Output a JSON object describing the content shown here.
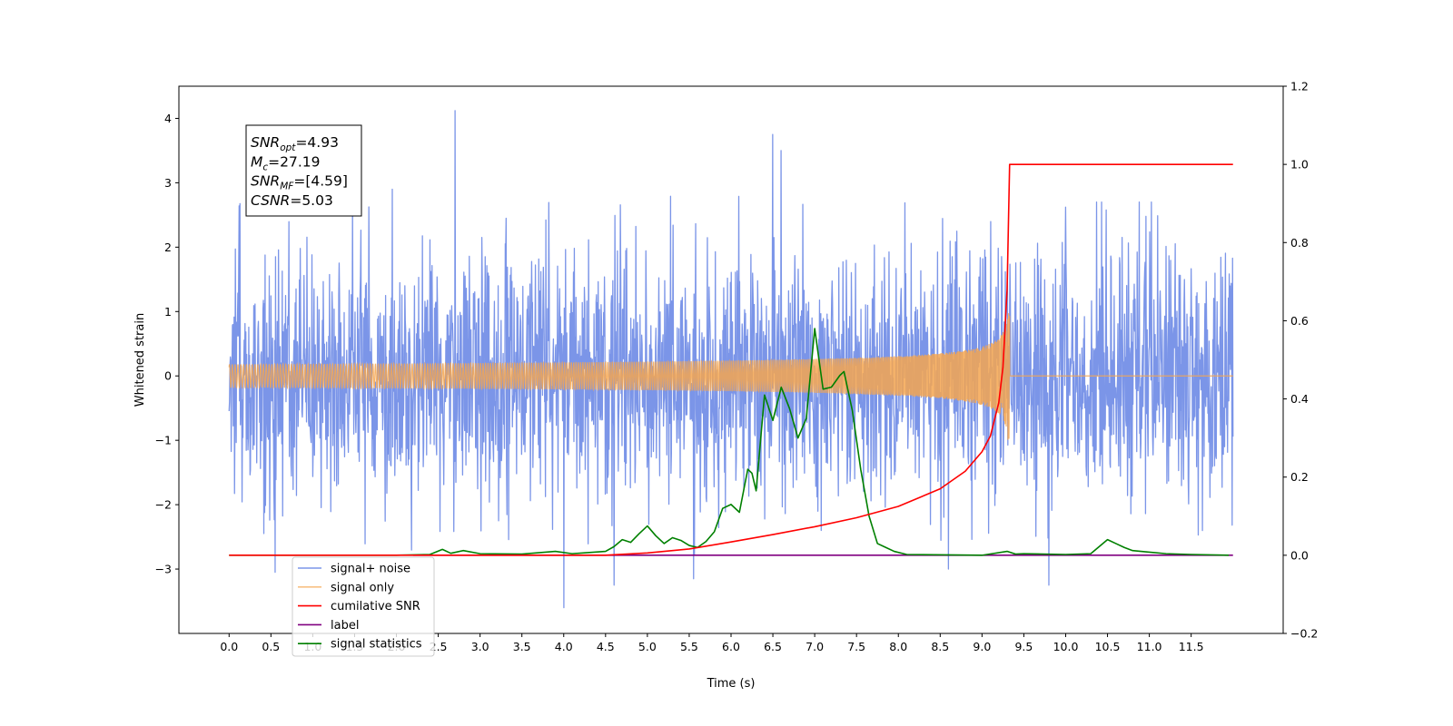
{
  "chart_data": {
    "type": "line",
    "title": "",
    "xlabel": "Time (s)",
    "ylabel": "Whitened strain",
    "xlim": [
      -0.6,
      12.6
    ],
    "ylim": [
      -4.0,
      4.5
    ],
    "y2lim": [
      -0.2,
      1.2
    ],
    "x_ticks": [
      "0.0",
      "0.5",
      "1.0",
      "1.5",
      "2.0",
      "2.5",
      "3.0",
      "3.5",
      "4.0",
      "4.5",
      "5.0",
      "5.5",
      "6.0",
      "6.5",
      "7.0",
      "7.5",
      "8.0",
      "8.5",
      "9.0",
      "9.5",
      "10.0",
      "10.5",
      "11.0",
      "11.5"
    ],
    "y_ticks": [
      "−3",
      "−2",
      "−1",
      "0",
      "1",
      "2",
      "3",
      "4"
    ],
    "y2_ticks": [
      "−0.2",
      "0.0",
      "0.2",
      "0.4",
      "0.6",
      "0.8",
      "1.0",
      "1.2"
    ],
    "grid": false,
    "legend_position": "lower-left",
    "annotation": {
      "lines": [
        {
          "main": "SNR",
          "sub": "opt",
          "rest": "=4.93"
        },
        {
          "main": "M",
          "sub": "c",
          "rest": "=27.19"
        },
        {
          "main": "SNR",
          "sub": "MF",
          "rest": "=[4.59]"
        },
        {
          "main": "CSNR",
          "sub": "",
          "rest": "=5.03"
        }
      ]
    },
    "series": [
      {
        "name": "signal+ noise",
        "axis": "left",
        "color": "#7b95e8",
        "kind": "noise",
        "x_range": [
          0.0,
          12.0
        ],
        "sigma": 1.0,
        "notable_peaks": [
          [
            0.55,
            -3.05
          ],
          [
            1.95,
            2.9
          ],
          [
            2.7,
            4.12
          ],
          [
            4.0,
            -3.6
          ],
          [
            4.6,
            -3.25
          ],
          [
            5.55,
            -3.15
          ],
          [
            6.5,
            3.75
          ],
          [
            6.6,
            3.5
          ],
          [
            8.6,
            -3.0
          ],
          [
            9.8,
            -3.25
          ]
        ]
      },
      {
        "name": "signal only",
        "axis": "left",
        "color": "#f5a650",
        "kind": "chirp",
        "x_range": [
          0.0,
          12.0
        ],
        "merger_time": 9.33,
        "peak_amplitude": 1.0
      },
      {
        "name": "cumilative SNR",
        "axis": "right",
        "color": "#ff0000",
        "x": [
          0.0,
          4.5,
          5.0,
          5.5,
          6.0,
          6.5,
          7.0,
          7.5,
          8.0,
          8.5,
          8.8,
          9.0,
          9.1,
          9.2,
          9.25,
          9.3,
          9.33,
          10.0,
          11.0,
          12.0
        ],
        "values": [
          0.0,
          0.0,
          0.006,
          0.016,
          0.034,
          0.053,
          0.073,
          0.096,
          0.125,
          0.17,
          0.215,
          0.265,
          0.305,
          0.39,
          0.48,
          0.68,
          1.0,
          1.0,
          1.0,
          1.0
        ]
      },
      {
        "name": "label",
        "axis": "right",
        "color": "#800080",
        "x": [
          2.2,
          12.0
        ],
        "values": [
          0.0,
          0.0
        ]
      },
      {
        "name": "signal statistics",
        "axis": "right",
        "color": "#008000",
        "x": [
          0.0,
          2.0,
          2.4,
          2.55,
          2.65,
          2.8,
          3.0,
          3.5,
          3.9,
          4.1,
          4.5,
          4.6,
          4.7,
          4.8,
          4.9,
          5.0,
          5.1,
          5.2,
          5.3,
          5.4,
          5.5,
          5.6,
          5.7,
          5.8,
          5.9,
          6.0,
          6.1,
          6.2,
          6.25,
          6.3,
          6.4,
          6.5,
          6.6,
          6.7,
          6.8,
          6.9,
          7.0,
          7.1,
          7.2,
          7.3,
          7.35,
          7.45,
          7.55,
          7.65,
          7.75,
          7.85,
          7.95,
          8.1,
          9.0,
          9.3,
          9.4,
          9.5,
          10.0,
          10.3,
          10.5,
          10.6,
          10.7,
          10.8,
          11.0,
          11.2,
          11.5,
          11.95
        ],
        "values": [
          0.0,
          0.0,
          0.002,
          0.015,
          0.005,
          0.012,
          0.004,
          0.003,
          0.01,
          0.004,
          0.01,
          0.022,
          0.04,
          0.033,
          0.055,
          0.075,
          0.05,
          0.03,
          0.045,
          0.038,
          0.025,
          0.02,
          0.035,
          0.06,
          0.12,
          0.13,
          0.11,
          0.22,
          0.21,
          0.165,
          0.41,
          0.345,
          0.43,
          0.375,
          0.3,
          0.35,
          0.58,
          0.425,
          0.43,
          0.46,
          0.47,
          0.37,
          0.22,
          0.1,
          0.03,
          0.02,
          0.01,
          0.002,
          0.0,
          0.01,
          0.003,
          0.004,
          0.002,
          0.004,
          0.04,
          0.03,
          0.02,
          0.012,
          0.008,
          0.004,
          0.002,
          0.0
        ]
      }
    ]
  }
}
